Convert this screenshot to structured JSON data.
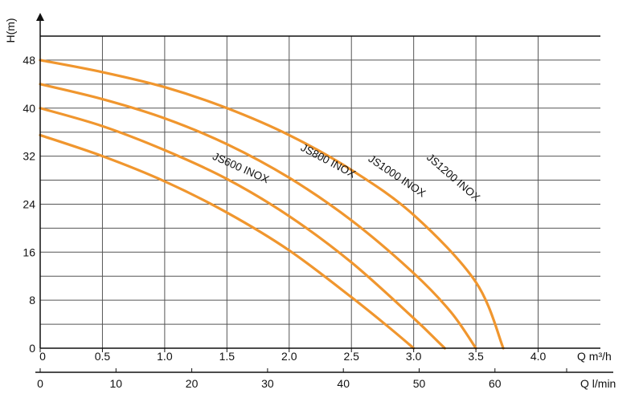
{
  "chart_data": {
    "type": "line",
    "title": "",
    "ylabel": "H(m)",
    "xlabel": "Q m³/h",
    "xlabel2": "Q l/min",
    "xlim": [
      0,
      4.5
    ],
    "ylim": [
      0,
      52
    ],
    "x_ticks": [
      0,
      0.5,
      1.0,
      1.5,
      2.0,
      2.5,
      3.0,
      3.5,
      4.0
    ],
    "x_tick_labels": [
      "0",
      "0.5",
      "1.0",
      "1.5",
      "2.0",
      "2.5",
      "3.0",
      "3.5",
      "4.0"
    ],
    "y_ticks": [
      0,
      8,
      16,
      24,
      32,
      40,
      48
    ],
    "y_tick_labels": [
      "0",
      "8",
      "16",
      "24",
      "32",
      "40",
      "48"
    ],
    "x2_ticks": [
      0,
      10,
      20,
      30,
      40,
      50,
      60
    ],
    "x2_tick_labels": [
      "0",
      "10",
      "20",
      "30",
      "40",
      "50",
      "60"
    ],
    "grid": true,
    "line_color": "#f0962e",
    "series": [
      {
        "name": "JS600 INOX",
        "x": [
          0,
          0.5,
          1.0,
          1.5,
          2.0,
          2.5,
          2.8,
          3.0
        ],
        "y": [
          35.5,
          32,
          27.8,
          22.6,
          16.3,
          8.5,
          3.5,
          0
        ]
      },
      {
        "name": "JS800 INOX",
        "x": [
          0,
          0.5,
          1.0,
          1.5,
          2.0,
          2.5,
          3.0,
          3.2,
          3.25
        ],
        "y": [
          40,
          37,
          33,
          28.2,
          22,
          14.3,
          5,
          1,
          0
        ]
      },
      {
        "name": "JS1000 INOX",
        "x": [
          0,
          0.5,
          1.0,
          1.5,
          2.0,
          2.5,
          3.0,
          3.3,
          3.5
        ],
        "y": [
          44,
          41.5,
          38.3,
          34,
          28.4,
          21.3,
          12.5,
          6,
          0
        ]
      },
      {
        "name": "JS1200 INOX",
        "x": [
          0,
          0.5,
          1.0,
          1.5,
          2.0,
          2.5,
          3.0,
          3.5,
          3.72
        ],
        "y": [
          48,
          46,
          43.5,
          40,
          35.5,
          29.7,
          22.2,
          11,
          0
        ]
      }
    ]
  }
}
